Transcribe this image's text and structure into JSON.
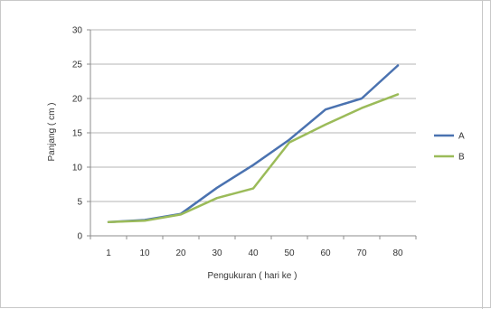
{
  "chart_data": {
    "type": "line",
    "categories": [
      "1",
      "10",
      "20",
      "30",
      "40",
      "50",
      "60",
      "70",
      "80"
    ],
    "series": [
      {
        "name": "A",
        "color": "#4a72b0",
        "values": [
          2,
          2.3,
          3.2,
          7,
          10.3,
          14,
          18.4,
          20,
          24.8
        ]
      },
      {
        "name": "B",
        "color": "#9bbb59",
        "values": [
          2,
          2.2,
          3.1,
          5.5,
          6.9,
          13.6,
          16.2,
          18.6,
          20.6
        ]
      }
    ],
    "ylim": [
      0,
      30
    ],
    "yticks": [
      0,
      5,
      10,
      15,
      20,
      25,
      30
    ],
    "xlabel": "Pengukuran ( hari ke )",
    "ylabel": "Panjang ( cm )",
    "grid": "horizontal",
    "legend_position": "right"
  }
}
